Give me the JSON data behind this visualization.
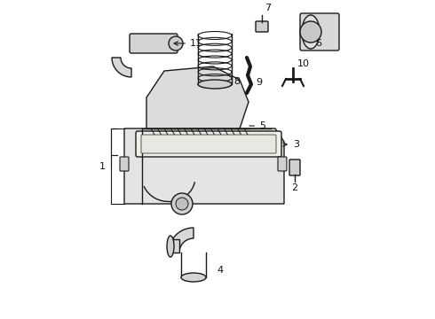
{
  "background_color": "#ffffff",
  "line_color": "#1a1a1a",
  "label_color": "#111111",
  "fig_width": 4.9,
  "fig_height": 3.6,
  "dpi": 100
}
